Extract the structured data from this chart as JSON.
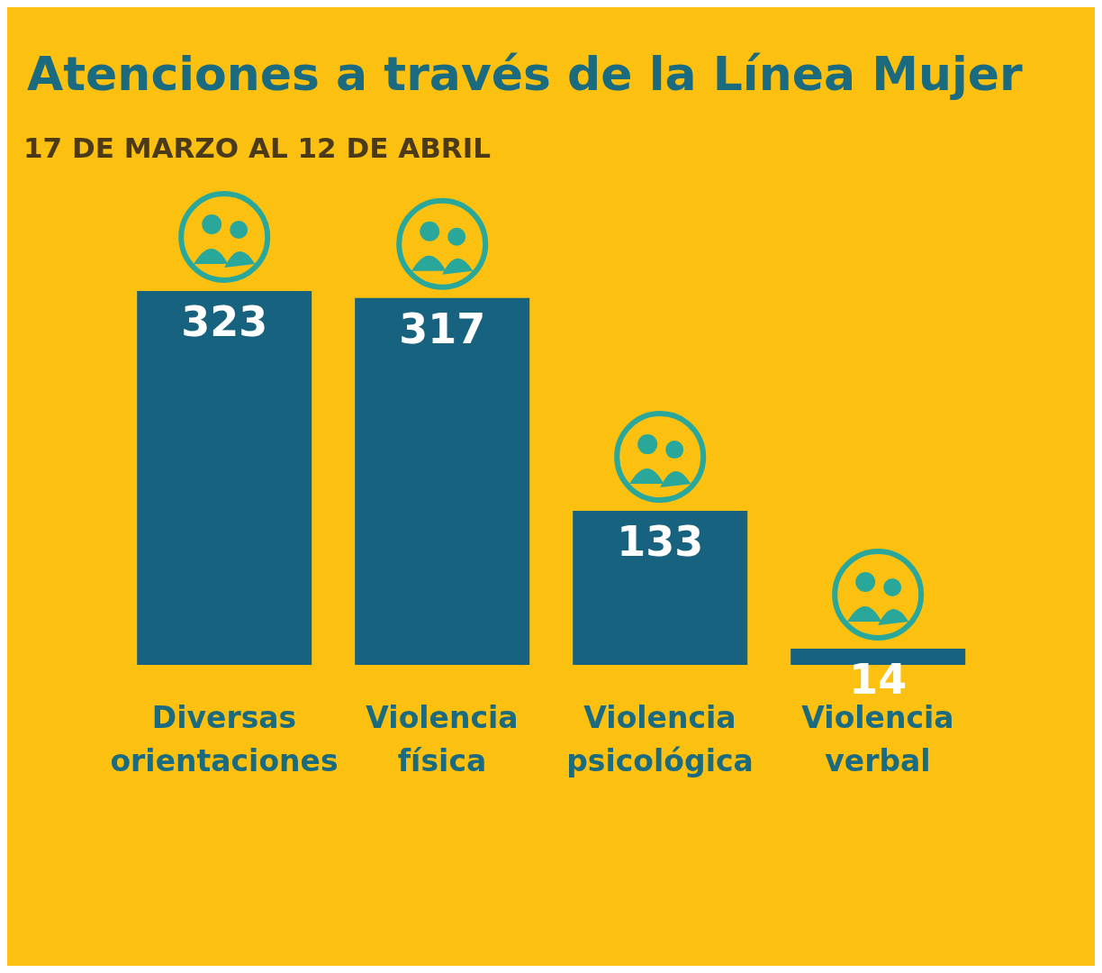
{
  "chart_data": {
    "type": "bar",
    "title": "Atenciones a través de la Línea Mujer",
    "subtitle": "17 DE MARZO AL 12 DE ABRIL",
    "categories": [
      "Diversas orientaciones",
      "Violencia física",
      "Violencia psicológica",
      "Violencia verbal"
    ],
    "values": [
      323,
      317,
      133,
      14
    ],
    "color": "#16627f",
    "data_labels": true
  }
}
